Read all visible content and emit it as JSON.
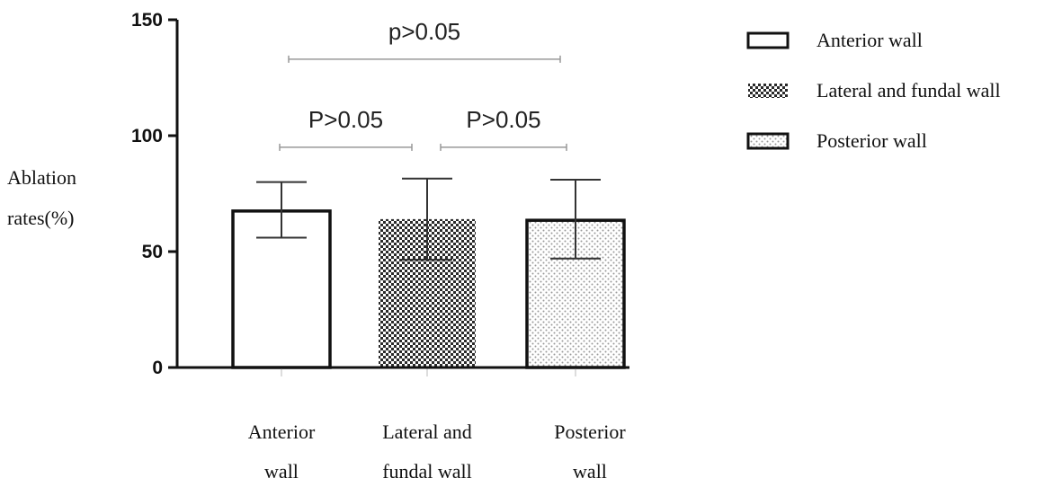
{
  "chart_data": {
    "type": "bar",
    "categories": [
      "Anterior wall",
      "Lateral and fundal wall",
      "Posterior wall"
    ],
    "category_lines": [
      [
        "Anterior",
        "wall"
      ],
      [
        "Lateral  and",
        "fundal wall"
      ],
      [
        "Posterior",
        "wall"
      ]
    ],
    "series": [
      {
        "name": "",
        "values": [
          67.5,
          64,
          63.5
        ],
        "error_low": [
          56,
          46.5,
          47
        ],
        "error_high": [
          80,
          81.5,
          81
        ]
      }
    ],
    "ylabel_lines": [
      "Ablation",
      "rates(%)"
    ],
    "ylim": [
      0,
      150
    ],
    "yticks": [
      0,
      50,
      100,
      150
    ],
    "ytick_labels": [
      "0",
      "50",
      "100",
      "150"
    ],
    "grid": false,
    "legend": {
      "placement": "top-right",
      "entries": [
        {
          "label": "Anterior wall",
          "pattern": "none"
        },
        {
          "label": "Lateral and fundal wall",
          "pattern": "checker"
        },
        {
          "label": "Posterior wall",
          "pattern": "dots"
        }
      ]
    },
    "annotations": [
      {
        "text": "p>0.05",
        "from": 0,
        "to": 2,
        "level": 133
      },
      {
        "text": "P>0.05",
        "from": 0,
        "to": 1,
        "level": 95
      },
      {
        "text": "P>0.05",
        "from": 1,
        "to": 2,
        "level": 95
      }
    ],
    "colors": {
      "bar_edge": "#111111",
      "bracket": "#999999",
      "axis": "#111111"
    }
  }
}
